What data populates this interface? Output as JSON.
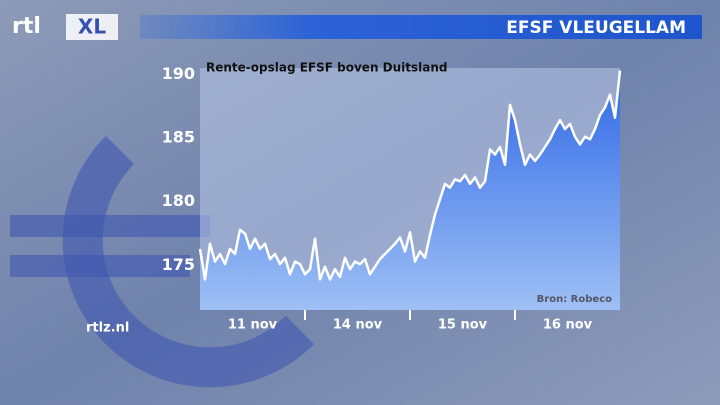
{
  "branding": {
    "logo": "rtl",
    "logo_suffix": "XL",
    "website": "rtlz.nl"
  },
  "chart_data": {
    "type": "area",
    "title": "EFSF VLEUGELLAM",
    "subtitle": "Rente-opslag EFSF boven Duitsland",
    "source": "Bron: Robeco",
    "day_labels": [
      "11 nov",
      "14 nov",
      "15 nov",
      "16 nov"
    ],
    "values": [
      176.3,
      173.9,
      176.7,
      175.3,
      175.9,
      175.1,
      176.3,
      175.9,
      177.8,
      177.5,
      176.3,
      177.1,
      176.3,
      176.7,
      175.5,
      175.9,
      175.1,
      175.6,
      174.3,
      175.3,
      175.1,
      174.3,
      174.7,
      177.1,
      173.9,
      174.9,
      173.9,
      174.7,
      174.1,
      175.6,
      174.7,
      175.3,
      175.1,
      175.5,
      174.3,
      174.9,
      175.5,
      175.9,
      176.3,
      176.7,
      177.2,
      176.1,
      177.6,
      175.3,
      176.1,
      175.6,
      177.4,
      179.0,
      180.2,
      181.4,
      181.1,
      181.75,
      181.6,
      182.1,
      181.4,
      181.9,
      181.1,
      181.6,
      184.1,
      183.7,
      184.3,
      182.9,
      187.6,
      186.4,
      184.5,
      182.9,
      183.7,
      183.2,
      183.7,
      184.3,
      184.9,
      185.7,
      186.4,
      185.7,
      186.1,
      185.1,
      184.5,
      185.1,
      184.9,
      185.7,
      186.8,
      187.4,
      188.4,
      186.6,
      190.3
    ],
    "ylim": [
      171.5,
      190.5
    ],
    "yticks": [
      175,
      180,
      185,
      190
    ],
    "line_color": "#ffffff",
    "fill_color": "#2f68e6"
  }
}
